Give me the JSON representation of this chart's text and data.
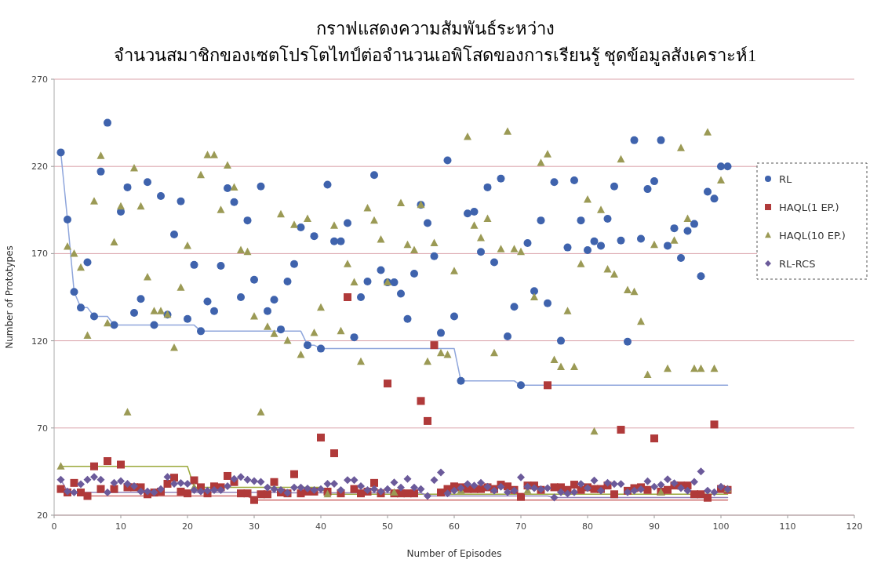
{
  "chart_data": {
    "type": "scatter",
    "title": "กราฟแสดงความสัมพันธ์ระหว่าง",
    "subtitle": "จำนวนสมาชิกของเซตโปรโตไทป์ต่อจำนวนเอพิโสดของการเรียนรู้ ชุดข้อมูลสังเคราะห์1",
    "xlabel": "Number of Episodes",
    "ylabel": "Number of Prototypes",
    "xlim": [
      0,
      120
    ],
    "xticks": [
      0,
      10,
      20,
      30,
      40,
      50,
      60,
      70,
      80,
      90,
      100,
      110,
      120
    ],
    "ylim": [
      20,
      270
    ],
    "yticks": [
      20,
      70,
      120,
      170,
      220,
      270
    ],
    "grid": "y",
    "legend": "right",
    "x": [
      1,
      2,
      3,
      4,
      5,
      6,
      7,
      8,
      9,
      10,
      11,
      12,
      13,
      14,
      15,
      16,
      17,
      18,
      19,
      20,
      21,
      22,
      23,
      24,
      25,
      26,
      27,
      28,
      29,
      30,
      31,
      32,
      33,
      34,
      35,
      36,
      37,
      38,
      39,
      40,
      41,
      42,
      43,
      44,
      45,
      46,
      47,
      48,
      49,
      50,
      51,
      52,
      53,
      54,
      55,
      56,
      57,
      58,
      59,
      60,
      61,
      62,
      63,
      64,
      65,
      66,
      67,
      68,
      69,
      70,
      71,
      72,
      73,
      74,
      75,
      76,
      77,
      78,
      79,
      80,
      81,
      82,
      83,
      84,
      85,
      86,
      87,
      88,
      89,
      90,
      91,
      92,
      93,
      94,
      95,
      96,
      97,
      98,
      99,
      100,
      101
    ],
    "series": [
      {
        "type": "line",
        "color": "#8fa6dc",
        "marker": "none",
        "x": [
          1,
          2,
          3,
          4,
          5,
          6,
          8,
          9,
          21,
          22,
          37,
          38,
          39,
          40,
          60,
          61,
          69,
          70,
          101
        ],
        "values": [
          228,
          189.5,
          148,
          139,
          139,
          134,
          134,
          129,
          129,
          125.5,
          125.5,
          117.5,
          117.5,
          115.5,
          115.5,
          97,
          97,
          94.5,
          94.5
        ]
      },
      {
        "type": "line",
        "color": "#9aa83a",
        "marker": "none",
        "x": [
          1,
          20,
          21,
          40,
          41,
          101
        ],
        "values": [
          48,
          48,
          36,
          36,
          32,
          32
        ]
      },
      {
        "type": "line",
        "color": "#d07070",
        "marker": "none",
        "x": [
          1,
          2,
          4,
          5,
          29,
          30,
          101
        ],
        "values": [
          35,
          33,
          33,
          31,
          31,
          28.7,
          28.7
        ]
      },
      {
        "type": "line",
        "color": "#9484bc",
        "marker": "none",
        "x": [
          1,
          2,
          3,
          34,
          35,
          55,
          56,
          74,
          75,
          101
        ],
        "values": [
          40.4,
          33.6,
          33,
          33,
          32.8,
          32.8,
          31,
          31,
          30.1,
          30.1
        ]
      },
      {
        "name": "RL",
        "marker": "circle",
        "color": "#3f63ad",
        "values": [
          228,
          189.5,
          148,
          139,
          165,
          134,
          217,
          245,
          129,
          194,
          208,
          136,
          144,
          211,
          129,
          203,
          135,
          181,
          200,
          132.5,
          163.5,
          125.5,
          142.5,
          137,
          163,
          207.5,
          199.5,
          145,
          189,
          155,
          208.5,
          137,
          143.5,
          126.5,
          154,
          164,
          185,
          117.5,
          180,
          115.5,
          209.5,
          177,
          177,
          187.5,
          122,
          145,
          154,
          215,
          160.5,
          153.5,
          153.5,
          147,
          132.5,
          158.5,
          198,
          187.5,
          168.5,
          124.5,
          223.5,
          134,
          97,
          193,
          194,
          171,
          208,
          165,
          213,
          122.5,
          139.5,
          94.5,
          176,
          148.5,
          189,
          141.5,
          211,
          120,
          173.5,
          212,
          189,
          172,
          177,
          174.5,
          190,
          208.5,
          177.5,
          119.5,
          235,
          178.5,
          207,
          211.5,
          235,
          174.5,
          184.5,
          167.5,
          183,
          187,
          157,
          205.5,
          201.5,
          220,
          220
        ]
      },
      {
        "name": "HAQL(1 EP.)",
        "marker": "square",
        "color": "#b03a3a",
        "values": [
          35,
          33,
          38.5,
          33,
          31,
          48,
          35,
          51,
          35,
          49,
          36,
          36,
          36,
          32,
          33,
          33.5,
          38,
          41.5,
          33.5,
          32.5,
          40,
          36,
          32.5,
          36.5,
          36,
          42.5,
          39,
          32.5,
          32.5,
          28.7,
          32,
          32,
          39,
          33,
          32.5,
          43.5,
          32.5,
          33.5,
          33.5,
          64.5,
          33.5,
          55.5,
          32.5,
          145,
          35,
          32.5,
          33.5,
          38.5,
          32.5,
          95.5,
          32.5,
          32.5,
          32.5,
          32.5,
          85.5,
          74,
          117.5,
          33,
          35,
          36.5,
          36,
          35,
          35,
          35,
          36,
          35,
          37.5,
          36.5,
          34.5,
          30.5,
          37,
          37,
          34.5,
          94.5,
          36,
          36,
          34.5,
          37.5,
          34.5,
          36,
          35,
          35,
          37,
          32,
          69,
          34,
          35.5,
          36,
          34.5,
          64,
          33.5,
          34.5,
          37,
          37,
          37,
          32,
          32,
          30,
          72,
          35,
          34.5
        ]
      },
      {
        "name": "HAQL(10 EP.)",
        "marker": "triangle",
        "color": "#9b9a55",
        "values": [
          48,
          174,
          170,
          162,
          123,
          200,
          226,
          130,
          176.5,
          197,
          79,
          219,
          197,
          156.5,
          137,
          137,
          135,
          116,
          150.5,
          174.5,
          36,
          215,
          226.5,
          226.5,
          195,
          220.5,
          208,
          172,
          171,
          134,
          79,
          128,
          124,
          192.5,
          120,
          186.5,
          112,
          190,
          124.5,
          139,
          32,
          186,
          125.5,
          164,
          153.5,
          108,
          196,
          189,
          178,
          153.5,
          33,
          199,
          175,
          172,
          198,
          108,
          176,
          113,
          112,
          160,
          34,
          237,
          186,
          179,
          190,
          113,
          172.5,
          240,
          172.5,
          171,
          34,
          145,
          222,
          227,
          109,
          105,
          137,
          105,
          164,
          201,
          68,
          195,
          161,
          158,
          224,
          149,
          148,
          131,
          100.5,
          175,
          33,
          104,
          177.5,
          230.5,
          190,
          104,
          104,
          239.5,
          104,
          212,
          35
        ]
      },
      {
        "name": "RL-RCS",
        "marker": "diamond",
        "color": "#6b5a9a",
        "values": [
          40.4,
          33.6,
          33,
          37.8,
          40.4,
          41.9,
          40.4,
          33,
          38.6,
          39.6,
          38,
          36.6,
          33.6,
          33.6,
          33,
          35,
          41.9,
          38,
          38.4,
          38,
          34.4,
          33.6,
          34,
          34.4,
          34.4,
          36.6,
          40.8,
          41.9,
          40.4,
          39.6,
          39.1,
          35.8,
          35,
          34.4,
          32.8,
          35.8,
          35.8,
          35.3,
          34.4,
          35,
          38,
          38,
          34.4,
          40.1,
          40.1,
          36.6,
          34.4,
          35,
          33.6,
          35,
          38.8,
          35.8,
          40.8,
          35.8,
          35,
          31,
          40.1,
          44.5,
          32.5,
          34,
          35.5,
          37.9,
          37,
          38.6,
          36.3,
          34,
          36.3,
          33.2,
          34,
          41.7,
          36.3,
          35.5,
          34.8,
          35.5,
          30.1,
          33.2,
          32.4,
          33.2,
          37.9,
          35.5,
          39.9,
          34,
          38.6,
          37.9,
          37.9,
          33.2,
          34,
          34.8,
          39.4,
          36.3,
          37.4,
          40.6,
          38.3,
          35.5,
          34,
          39.1,
          45.1,
          34,
          33.2,
          36.3,
          34.8
        ]
      }
    ]
  }
}
